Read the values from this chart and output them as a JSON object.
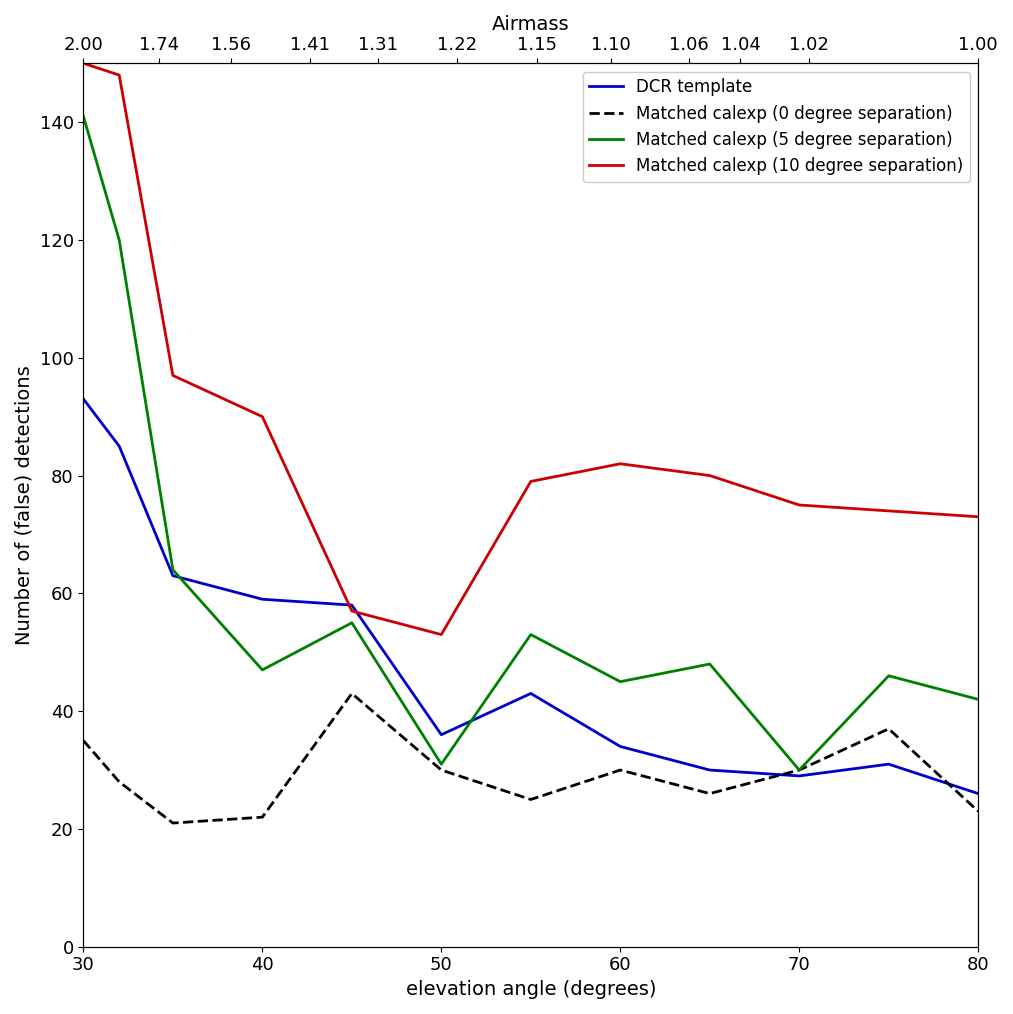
{
  "x": [
    30,
    32,
    35,
    40,
    45,
    50,
    55,
    60,
    65,
    70,
    75,
    80
  ],
  "blue_y": [
    93,
    85,
    63,
    59,
    58,
    36,
    43,
    34,
    30,
    29,
    31,
    26
  ],
  "black_y": [
    35,
    28,
    21,
    22,
    43,
    30,
    25,
    30,
    26,
    30,
    37,
    23
  ],
  "green_y": [
    141,
    120,
    64,
    47,
    55,
    31,
    53,
    45,
    48,
    30,
    46,
    42
  ],
  "red_y": [
    150,
    148,
    97,
    90,
    57,
    53,
    79,
    82,
    80,
    75,
    74,
    73
  ],
  "airmass_tick_labels": [
    "2.00",
    "1.74",
    "1.56",
    "1.41",
    "1.31",
    "1.22",
    "1.15",
    "1.10",
    "1.06",
    "1.04",
    "1.02",
    "1.00"
  ],
  "airmass_tick_values": [
    2.0,
    1.74,
    1.56,
    1.41,
    1.31,
    1.22,
    1.15,
    1.1,
    1.06,
    1.04,
    1.02,
    1.0
  ],
  "bottom_xticks": [
    30,
    40,
    50,
    60,
    70,
    80
  ],
  "xlim": [
    30,
    80
  ],
  "ylim": [
    0,
    150
  ],
  "yticks": [
    0,
    20,
    40,
    60,
    80,
    100,
    120,
    140
  ],
  "xlabel": "elevation angle (degrees)",
  "ylabel": "Number of (false) detections",
  "top_label": "Airmass",
  "legend_labels": [
    "DCR template",
    "Matched calexp (0 degree separation)",
    "Matched calexp (5 degree separation)",
    "Matched calexp (10 degree separation)"
  ],
  "blue_color": "#0000CC",
  "black_color": "#000000",
  "green_color": "#008000",
  "red_color": "#CC0000",
  "figsize": [
    10.13,
    10.14
  ],
  "dpi": 100
}
